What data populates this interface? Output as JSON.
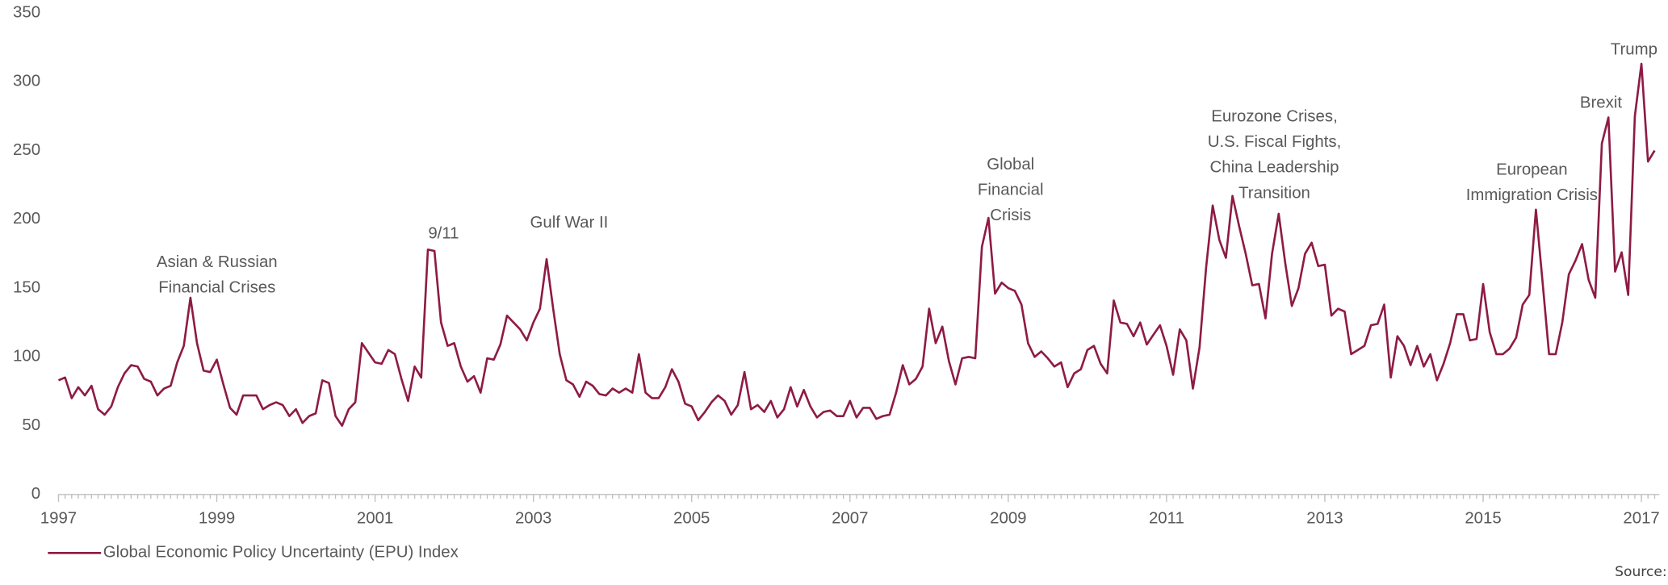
{
  "chart_data": {
    "type": "line",
    "x": [
      1997,
      1997.083,
      1997.167,
      1997.25,
      1997.333,
      1997.417,
      1997.5,
      1997.583,
      1997.667,
      1997.75,
      1997.833,
      1997.917,
      1998,
      1998.083,
      1998.167,
      1998.25,
      1998.333,
      1998.417,
      1998.5,
      1998.583,
      1998.667,
      1998.75,
      1998.833,
      1998.917,
      1999,
      1999.083,
      1999.167,
      1999.25,
      1999.333,
      1999.417,
      1999.5,
      1999.583,
      1999.667,
      1999.75,
      1999.833,
      1999.917,
      2000,
      2000.083,
      2000.167,
      2000.25,
      2000.333,
      2000.417,
      2000.5,
      2000.583,
      2000.667,
      2000.75,
      2000.833,
      2000.917,
      2001,
      2001.083,
      2001.167,
      2001.25,
      2001.333,
      2001.417,
      2001.5,
      2001.583,
      2001.667,
      2001.75,
      2001.833,
      2001.917,
      2002,
      2002.083,
      2002.167,
      2002.25,
      2002.333,
      2002.417,
      2002.5,
      2002.583,
      2002.667,
      2002.75,
      2002.833,
      2002.917,
      2003,
      2003.083,
      2003.167,
      2003.25,
      2003.333,
      2003.417,
      2003.5,
      2003.583,
      2003.667,
      2003.75,
      2003.833,
      2003.917,
      2004,
      2004.083,
      2004.167,
      2004.25,
      2004.333,
      2004.417,
      2004.5,
      2004.583,
      2004.667,
      2004.75,
      2004.833,
      2004.917,
      2005,
      2005.083,
      2005.167,
      2005.25,
      2005.333,
      2005.417,
      2005.5,
      2005.583,
      2005.667,
      2005.75,
      2005.833,
      2005.917,
      2006,
      2006.083,
      2006.167,
      2006.25,
      2006.333,
      2006.417,
      2006.5,
      2006.583,
      2006.667,
      2006.75,
      2006.833,
      2006.917,
      2007,
      2007.083,
      2007.167,
      2007.25,
      2007.333,
      2007.417,
      2007.5,
      2007.583,
      2007.667,
      2007.75,
      2007.833,
      2007.917,
      2008,
      2008.083,
      2008.167,
      2008.25,
      2008.333,
      2008.417,
      2008.5,
      2008.583,
      2008.667,
      2008.75,
      2008.833,
      2008.917,
      2009,
      2009.083,
      2009.167,
      2009.25,
      2009.333,
      2009.417,
      2009.5,
      2009.583,
      2009.667,
      2009.75,
      2009.833,
      2009.917,
      2010,
      2010.083,
      2010.167,
      2010.25,
      2010.333,
      2010.417,
      2010.5,
      2010.583,
      2010.667,
      2010.75,
      2010.833,
      2010.917,
      2011,
      2011.083,
      2011.167,
      2011.25,
      2011.333,
      2011.417,
      2011.5,
      2011.583,
      2011.667,
      2011.75,
      2011.833,
      2011.917,
      2012,
      2012.083,
      2012.167,
      2012.25,
      2012.333,
      2012.417,
      2012.5,
      2012.583,
      2012.667,
      2012.75,
      2012.833,
      2012.917,
      2013,
      2013.083,
      2013.167,
      2013.25,
      2013.333,
      2013.417,
      2013.5,
      2013.583,
      2013.667,
      2013.75,
      2013.833,
      2013.917,
      2014,
      2014.083,
      2014.167,
      2014.25,
      2014.333,
      2014.417,
      2014.5,
      2014.583,
      2014.667,
      2014.75,
      2014.833,
      2014.917,
      2015,
      2015.083,
      2015.167,
      2015.25,
      2015.333,
      2015.417,
      2015.5,
      2015.583,
      2015.667,
      2015.75,
      2015.833,
      2015.917,
      2016,
      2016.083,
      2016.167,
      2016.25,
      2016.333,
      2016.417,
      2016.5,
      2016.583,
      2016.667,
      2016.75,
      2016.833,
      2016.917,
      2017,
      2017.083,
      2017.167
    ],
    "series": [
      {
        "name": "Global Economic Policy Uncertainty (EPU) Index",
        "color": "#8e1b45",
        "values": [
          83,
          85,
          70,
          78,
          72,
          79,
          62,
          58,
          64,
          78,
          88,
          94,
          93,
          84,
          82,
          72,
          77,
          79,
          96,
          108,
          143,
          110,
          90,
          89,
          98,
          80,
          63,
          58,
          72,
          72,
          72,
          62,
          65,
          67,
          65,
          57,
          62,
          52,
          57,
          59,
          83,
          81,
          57,
          50,
          62,
          67,
          110,
          103,
          96,
          95,
          105,
          102,
          84,
          68,
          93,
          85,
          178,
          177,
          125,
          108,
          110,
          93,
          82,
          86,
          74,
          99,
          98,
          109,
          130,
          125,
          120,
          112,
          125,
          135,
          171,
          135,
          102,
          83,
          80,
          71,
          82,
          79,
          73,
          72,
          77,
          74,
          77,
          74,
          102,
          74,
          70,
          70,
          78,
          91,
          82,
          66,
          64,
          54,
          60,
          67,
          72,
          68,
          58,
          65,
          89,
          62,
          65,
          60,
          68,
          56,
          62,
          78,
          64,
          76,
          64,
          56,
          60,
          61,
          57,
          57,
          68,
          56,
          63,
          63,
          55,
          57,
          58,
          74,
          94,
          80,
          84,
          93,
          135,
          110,
          122,
          97,
          80,
          99,
          100,
          99,
          180,
          201,
          146,
          154,
          150,
          148,
          138,
          110,
          100,
          104,
          99,
          93,
          96,
          78,
          88,
          91,
          105,
          108,
          95,
          88,
          141,
          125,
          124,
          115,
          125,
          109,
          116,
          123,
          108,
          87,
          120,
          112,
          77,
          107,
          165,
          210,
          185,
          172,
          217,
          195,
          175,
          152,
          153,
          128,
          175,
          204,
          168,
          137,
          150,
          175,
          183,
          166,
          167,
          130,
          135,
          133,
          102,
          105,
          108,
          123,
          124,
          138,
          85,
          115,
          108,
          94,
          108,
          93,
          102,
          83,
          95,
          110,
          131,
          131,
          112,
          113,
          153,
          118,
          102,
          102,
          106,
          114,
          138,
          145,
          207,
          155,
          102,
          102,
          125,
          160,
          170,
          182,
          156,
          143,
          255,
          274,
          162,
          176,
          145,
          275,
          313,
          242,
          250
        ]
      }
    ],
    "xlim": [
      1997,
      2017.2
    ],
    "xticks": [
      1997,
      1999,
      2001,
      2003,
      2005,
      2007,
      2009,
      2011,
      2013,
      2015,
      2017
    ],
    "ylim": [
      0,
      350
    ],
    "yticks": [
      0,
      50,
      100,
      150,
      200,
      250,
      300,
      350
    ],
    "grid": false,
    "legend": "bottom-left",
    "annotations": [
      {
        "lines": [
          "Asian & Russian",
          "Financial Crises"
        ]
      },
      {
        "lines": [
          "9/11"
        ]
      },
      {
        "lines": [
          "Gulf War II"
        ]
      },
      {
        "lines": [
          "Global",
          "Financial",
          "Crisis"
        ]
      },
      {
        "lines": [
          "Eurozone Crises,",
          "U.S. Fiscal Fights,",
          "China Leadership",
          "Transition"
        ]
      },
      {
        "lines": [
          "European",
          "Immigration Crisis"
        ]
      },
      {
        "lines": [
          "Brexit"
        ]
      },
      {
        "lines": [
          "Trump"
        ]
      }
    ],
    "source": "Source:  policyuncertaint"
  }
}
